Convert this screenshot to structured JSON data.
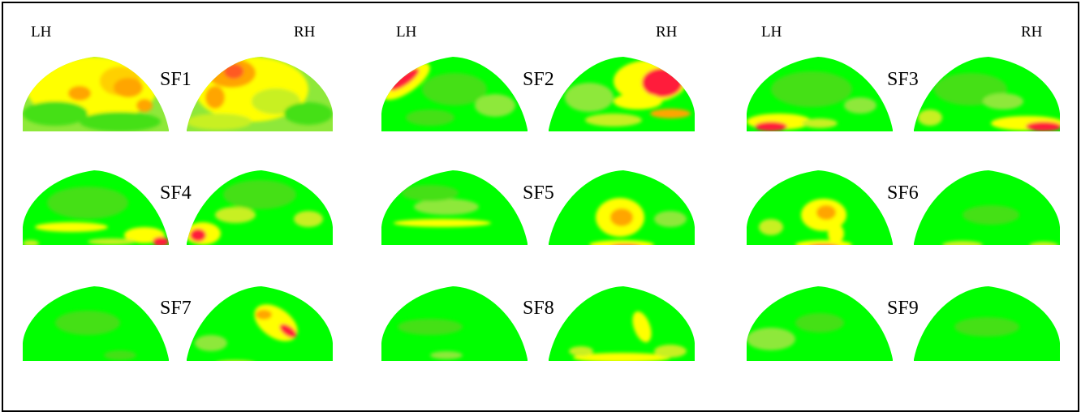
{
  "hemisphere_labels": {
    "left": "LH",
    "right": "RH"
  },
  "colors": {
    "base": "#00ff00",
    "mid_green": "#44e018",
    "light_green": "#8ee83a",
    "yellow_green": "#c8f020",
    "yellow": "#ffff00",
    "orange": "#ffa500",
    "red": "#ff1a3a",
    "frame": "#000000",
    "background": "#ffffff"
  },
  "panels": [
    {
      "label": "SF1",
      "intensity": "high"
    },
    {
      "label": "SF2",
      "intensity": "medium"
    },
    {
      "label": "SF3",
      "intensity": "medium"
    },
    {
      "label": "SF4",
      "intensity": "medium"
    },
    {
      "label": "SF5",
      "intensity": "medium"
    },
    {
      "label": "SF6",
      "intensity": "medium"
    },
    {
      "label": "SF7",
      "intensity": "low"
    },
    {
      "label": "SF8",
      "intensity": "low"
    },
    {
      "label": "SF9",
      "intensity": "low"
    }
  ]
}
